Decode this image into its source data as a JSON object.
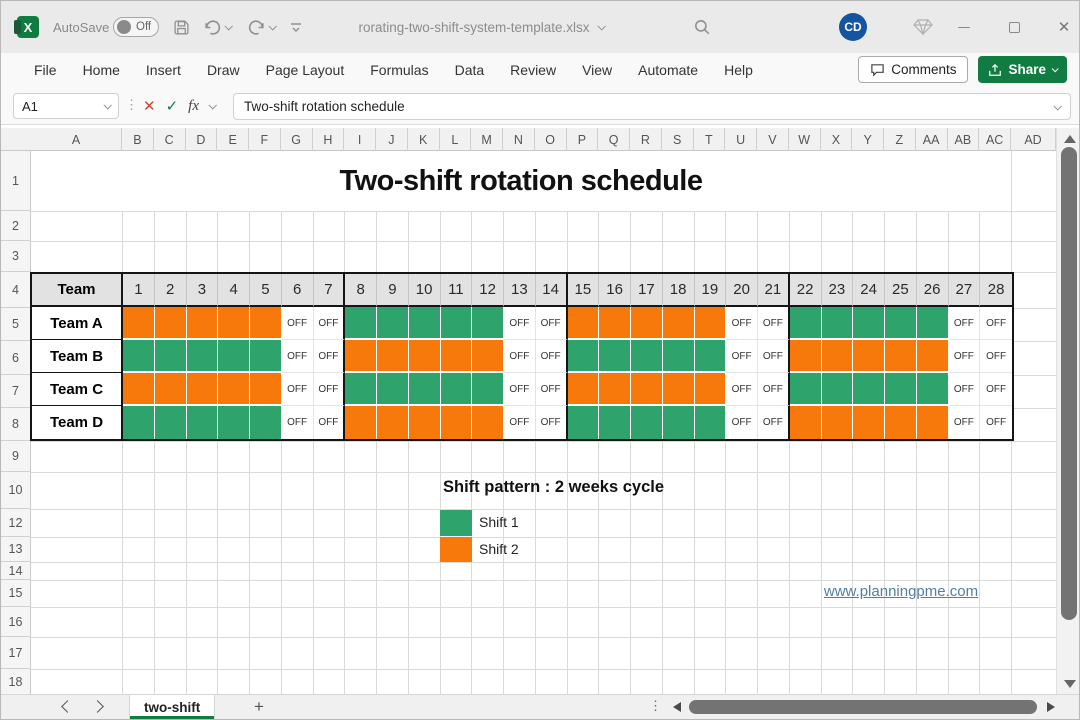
{
  "titlebar": {
    "autosave_label": "AutoSave",
    "autosave_state": "Off",
    "filename": "rorating-two-shift-system-template.xlsx",
    "avatar_initials": "CD"
  },
  "ribbon": {
    "tabs": [
      "File",
      "Home",
      "Insert",
      "Draw",
      "Page Layout",
      "Formulas",
      "Data",
      "Review",
      "View",
      "Automate",
      "Help"
    ],
    "comments_label": "Comments",
    "share_label": "Share"
  },
  "formula_bar": {
    "name_box": "A1",
    "fx_label": "fx",
    "cancel_glyph": "✕",
    "enter_glyph": "✓",
    "content": "Two-shift rotation schedule"
  },
  "grid": {
    "columns": [
      "A",
      "B",
      "C",
      "D",
      "E",
      "F",
      "G",
      "H",
      "I",
      "J",
      "K",
      "L",
      "M",
      "N",
      "O",
      "P",
      "Q",
      "R",
      "S",
      "T",
      "U",
      "V",
      "W",
      "X",
      "Y",
      "Z",
      "AA",
      "AB",
      "AC",
      "AD"
    ],
    "rows": [
      "1",
      "2",
      "3",
      "4",
      "5",
      "6",
      "7",
      "8",
      "9",
      "10",
      "12",
      "13",
      "14",
      "15",
      "16",
      "17",
      "18"
    ]
  },
  "sheet": {
    "title": "Two-shift rotation schedule",
    "legend_title": "Shift pattern : 2 weeks cycle",
    "legend": [
      {
        "label": "Shift 1",
        "color": "#2EA36B"
      },
      {
        "label": "Shift 2",
        "color": "#F8790B"
      }
    ],
    "link": "www.planningpme.com"
  },
  "schedule": {
    "header": "Team",
    "days": [
      "1",
      "2",
      "3",
      "4",
      "5",
      "6",
      "7",
      "8",
      "9",
      "10",
      "11",
      "12",
      "13",
      "14",
      "15",
      "16",
      "17",
      "18",
      "19",
      "20",
      "21",
      "22",
      "23",
      "24",
      "25",
      "26",
      "27",
      "28"
    ],
    "off_label": "OFF",
    "week_length": 7,
    "teams": [
      {
        "name": "Team A",
        "pattern": [
          "2",
          "2",
          "2",
          "2",
          "2",
          "OFF",
          "OFF",
          "1",
          "1",
          "1",
          "1",
          "1",
          "OFF",
          "OFF",
          "2",
          "2",
          "2",
          "2",
          "2",
          "OFF",
          "OFF",
          "1",
          "1",
          "1",
          "1",
          "1",
          "OFF",
          "OFF"
        ]
      },
      {
        "name": "Team B",
        "pattern": [
          "1",
          "1",
          "1",
          "1",
          "1",
          "OFF",
          "OFF",
          "2",
          "2",
          "2",
          "2",
          "2",
          "OFF",
          "OFF",
          "1",
          "1",
          "1",
          "1",
          "1",
          "OFF",
          "OFF",
          "2",
          "2",
          "2",
          "2",
          "2",
          "OFF",
          "OFF"
        ]
      },
      {
        "name": "Team C",
        "pattern": [
          "2",
          "2",
          "2",
          "2",
          "2",
          "OFF",
          "OFF",
          "1",
          "1",
          "1",
          "1",
          "1",
          "OFF",
          "OFF",
          "2",
          "2",
          "2",
          "2",
          "2",
          "OFF",
          "OFF",
          "1",
          "1",
          "1",
          "1",
          "1",
          "OFF",
          "OFF"
        ]
      },
      {
        "name": "Team D",
        "pattern": [
          "1",
          "1",
          "1",
          "1",
          "1",
          "OFF",
          "OFF",
          "2",
          "2",
          "2",
          "2",
          "2",
          "OFF",
          "OFF",
          "1",
          "1",
          "1",
          "1",
          "1",
          "OFF",
          "OFF",
          "2",
          "2",
          "2",
          "2",
          "2",
          "OFF",
          "OFF"
        ]
      }
    ]
  },
  "colors": {
    "shift1": "#2EA36B",
    "shift2": "#F8790B",
    "accent_green": "#107C41",
    "header_gray": "#E2E2E2",
    "link_blue": "#51809E"
  },
  "sheet_tabs": {
    "active": "two-shift",
    "add_glyph": "+"
  }
}
